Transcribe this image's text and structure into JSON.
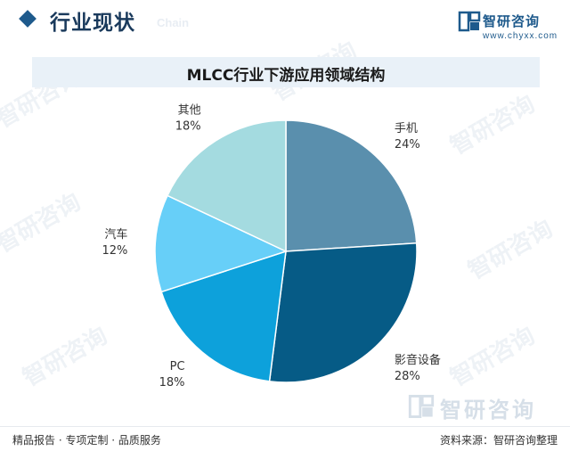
{
  "header": {
    "section_title": "行业现状",
    "section_title_en": "Chain"
  },
  "brand": {
    "name": "智研咨询",
    "url": "www.chyxx.com"
  },
  "watermark_text": "智研咨询",
  "chart_data": {
    "type": "pie",
    "title": "MLCC行业下游应用领域结构",
    "slices": [
      {
        "label": "手机",
        "value": 24,
        "value_label": "24%",
        "color": "#5a8fad"
      },
      {
        "label": "影音设备",
        "value": 28,
        "value_label": "28%",
        "color": "#065b86"
      },
      {
        "label": "PC",
        "value": 18,
        "value_label": "18%",
        "color": "#0da1db"
      },
      {
        "label": "汽车",
        "value": 12,
        "value_label": "12%",
        "color": "#67cff8"
      },
      {
        "label": "其他",
        "value": 18,
        "value_label": "18%",
        "color": "#a4dbe0"
      }
    ],
    "start": "12 o'clock",
    "direction": "clockwise"
  },
  "footer": {
    "left_text": "精品报告 · 专项定制 · 品质服务",
    "right_text": "资料来源：智研咨询整理"
  },
  "bottom_brand": {
    "name": "智研咨询"
  }
}
